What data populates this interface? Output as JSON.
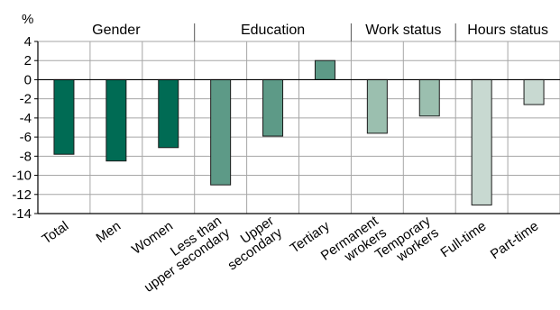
{
  "chart_data": {
    "type": "bar",
    "ylabel": "%",
    "ylim": [
      -14,
      4
    ],
    "yticks": [
      4,
      2,
      0,
      -2,
      -4,
      -6,
      -8,
      -10,
      -12,
      -14
    ],
    "grid": true,
    "groups": [
      {
        "label": "Gender",
        "categories": [
          0,
          1,
          2
        ]
      },
      {
        "label": "Education",
        "categories": [
          3,
          4,
          5
        ]
      },
      {
        "label": "Work status",
        "categories": [
          6,
          7
        ]
      },
      {
        "label": "Hours status",
        "categories": [
          8,
          9
        ]
      }
    ],
    "categories": [
      [
        "Total"
      ],
      [
        "Men"
      ],
      [
        "Women"
      ],
      [
        "Less than",
        "upper secondary"
      ],
      [
        "Upper",
        "secondary"
      ],
      [
        "Tertiary"
      ],
      [
        "Permanent",
        "wrokers"
      ],
      [
        "Temporary",
        "workers"
      ],
      [
        "Full-time"
      ],
      [
        "Part-time"
      ]
    ],
    "values": [
      -7.8,
      -8.5,
      -7.1,
      -11.0,
      -5.9,
      2.0,
      -5.6,
      -3.8,
      -13.1,
      -2.6
    ],
    "colors": [
      "#006b54",
      "#006b54",
      "#006b54",
      "#5d9a87",
      "#5d9a87",
      "#5d9a87",
      "#9bbfaf",
      "#9bbfaf",
      "#c8d9d1",
      "#c8d9d1"
    ]
  }
}
